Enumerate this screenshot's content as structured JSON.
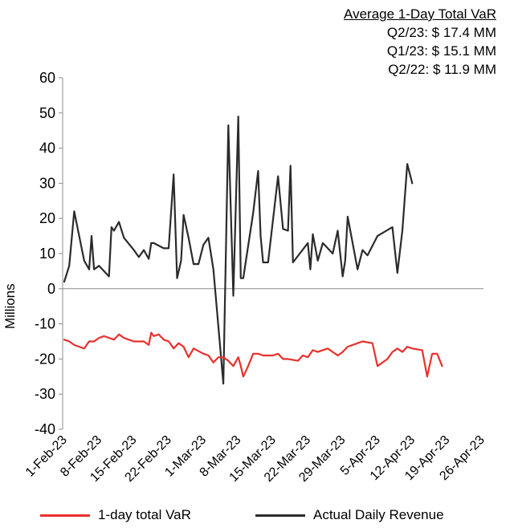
{
  "chart_data": {
    "type": "line",
    "title": "",
    "xlabel": "",
    "ylabel": "Millions",
    "ylim": [
      -40,
      60
    ],
    "yticks": [
      60,
      50,
      40,
      30,
      20,
      10,
      0,
      -10,
      -20,
      -30,
      -40
    ],
    "x_tick_labels": [
      "1-Feb-23",
      "8-Feb-23",
      "15-Feb-23",
      "22-Feb-23",
      "1-Mar-23",
      "8-Mar-23",
      "15-Mar-23",
      "22-Mar-23",
      "29-Mar-23",
      "5-Apr-23",
      "12-Apr-23",
      "19-Apr-23",
      "26-Apr-23"
    ],
    "x_tick_days": [
      0,
      7,
      14,
      21,
      28,
      35,
      42,
      49,
      56,
      63,
      70,
      77,
      84
    ],
    "series": [
      {
        "name": "Actual Daily Revenue",
        "color": "#2b2b2b",
        "points": [
          [
            0,
            2
          ],
          [
            1,
            6.5
          ],
          [
            2,
            22
          ],
          [
            4,
            8
          ],
          [
            5,
            5.5
          ],
          [
            5.5,
            15
          ],
          [
            6,
            5.5
          ],
          [
            7,
            6.5
          ],
          [
            9,
            3.5
          ],
          [
            9.5,
            17.5
          ],
          [
            10,
            16.5
          ],
          [
            11,
            19
          ],
          [
            12,
            14.5
          ],
          [
            14,
            11
          ],
          [
            15,
            9
          ],
          [
            16,
            11
          ],
          [
            17,
            8.5
          ],
          [
            17.5,
            13
          ],
          [
            18,
            13
          ],
          [
            20,
            11.5
          ],
          [
            21,
            11.5
          ],
          [
            22,
            32.5
          ],
          [
            22.7,
            3
          ],
          [
            23.5,
            8
          ],
          [
            24,
            21
          ],
          [
            25,
            14.5
          ],
          [
            26,
            7
          ],
          [
            27,
            7
          ],
          [
            28,
            12.5
          ],
          [
            29,
            14.5
          ],
          [
            30,
            5.5
          ],
          [
            32,
            -27
          ],
          [
            33,
            46.5
          ],
          [
            34,
            -2
          ],
          [
            35,
            49
          ],
          [
            35.5,
            3
          ],
          [
            36,
            3
          ],
          [
            38,
            21.5
          ],
          [
            39,
            33.5
          ],
          [
            39.5,
            15
          ],
          [
            40,
            7.5
          ],
          [
            41,
            7.5
          ],
          [
            43,
            32
          ],
          [
            44,
            17
          ],
          [
            45,
            16.5
          ],
          [
            45.5,
            35
          ],
          [
            46,
            7.5
          ],
          [
            49,
            13
          ],
          [
            49.5,
            5.5
          ],
          [
            50,
            15.5
          ],
          [
            51,
            8
          ],
          [
            52,
            13
          ],
          [
            53,
            11.5
          ],
          [
            54,
            10
          ],
          [
            55,
            16.5
          ],
          [
            56,
            3.5
          ],
          [
            56.5,
            8
          ],
          [
            57,
            20.5
          ],
          [
            59,
            5.5
          ],
          [
            60,
            11
          ],
          [
            61,
            9.5
          ],
          [
            63,
            15
          ],
          [
            66,
            17.5
          ],
          [
            67,
            4.5
          ],
          [
            68,
            16.5
          ],
          [
            69,
            35.5
          ],
          [
            70,
            30
          ]
        ]
      },
      {
        "name": "1-day total VaR",
        "color": "#e8302c",
        "points": [
          [
            0,
            -14.5
          ],
          [
            1,
            -15
          ],
          [
            2,
            -16
          ],
          [
            3,
            -16.5
          ],
          [
            4,
            -17
          ],
          [
            5,
            -15
          ],
          [
            6,
            -15
          ],
          [
            7,
            -14
          ],
          [
            8,
            -13.5
          ],
          [
            10,
            -14.5
          ],
          [
            11,
            -13
          ],
          [
            12,
            -14
          ],
          [
            13,
            -14.5
          ],
          [
            14,
            -15
          ],
          [
            16,
            -15
          ],
          [
            17,
            -16
          ],
          [
            17.5,
            -12.5
          ],
          [
            18,
            -13.5
          ],
          [
            19,
            -13
          ],
          [
            20,
            -14.5
          ],
          [
            21,
            -15
          ],
          [
            22,
            -17
          ],
          [
            23,
            -15.5
          ],
          [
            24,
            -16.5
          ],
          [
            25,
            -19.5
          ],
          [
            26,
            -17
          ],
          [
            28,
            -18.5
          ],
          [
            29,
            -19
          ],
          [
            30,
            -21
          ],
          [
            31,
            -19.5
          ],
          [
            32,
            -19.5
          ],
          [
            33,
            -20.5
          ],
          [
            34,
            -22
          ],
          [
            35,
            -19.5
          ],
          [
            35.5,
            -22
          ],
          [
            36,
            -25
          ],
          [
            37,
            -22
          ],
          [
            38,
            -18.5
          ],
          [
            39,
            -18.5
          ],
          [
            40,
            -19
          ],
          [
            42,
            -19
          ],
          [
            43,
            -18.5
          ],
          [
            44,
            -20
          ],
          [
            45,
            -20
          ],
          [
            47,
            -20.5
          ],
          [
            48,
            -19
          ],
          [
            49,
            -19.5
          ],
          [
            50,
            -17.5
          ],
          [
            51,
            -18
          ],
          [
            53,
            -17
          ],
          [
            54,
            -18
          ],
          [
            55,
            -19
          ],
          [
            56,
            -18
          ],
          [
            57,
            -16.5
          ],
          [
            59,
            -15.5
          ],
          [
            60,
            -15
          ],
          [
            62,
            -15.5
          ],
          [
            63,
            -22
          ],
          [
            65,
            -20
          ],
          [
            66,
            -18
          ],
          [
            67,
            -17
          ],
          [
            68,
            -18
          ],
          [
            69,
            -16.5
          ],
          [
            70,
            -17
          ],
          [
            72,
            -17.5
          ],
          [
            73,
            -25
          ],
          [
            74,
            -18.5
          ],
          [
            75,
            -18.5
          ],
          [
            76,
            -22
          ]
        ]
      }
    ],
    "summary": {
      "heading": "Average 1-Day Total VaR",
      "lines": [
        "Q2/23: $ 17.4  MM",
        "Q1/23: $ 15.1 MM",
        "Q2/22: $  11.9 MM"
      ]
    },
    "legend": [
      {
        "label": "1-day total VaR",
        "color": "#e8302c"
      },
      {
        "label": "Actual Daily Revenue",
        "color": "#2b2b2b"
      }
    ]
  }
}
